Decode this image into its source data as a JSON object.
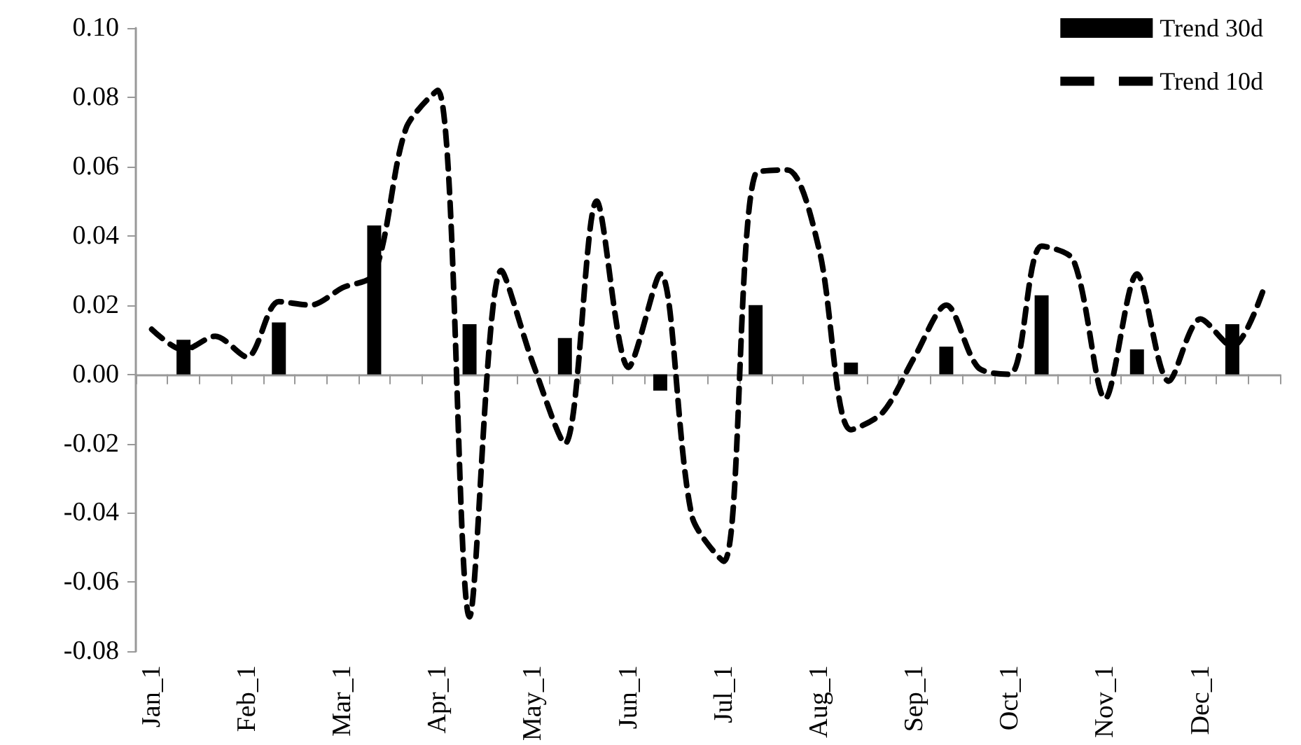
{
  "chart_data": {
    "type": "bar",
    "categories": [
      "Jan_1",
      null,
      null,
      "Feb_1",
      null,
      null,
      "Mar_1",
      null,
      null,
      "Apr_1",
      null,
      null,
      "May_1",
      null,
      null,
      "Jun_1",
      null,
      null,
      "Jul_1",
      null,
      null,
      "Aug_1",
      null,
      null,
      "Sep_1",
      null,
      null,
      "Oct_1",
      null,
      null,
      "Nov_1",
      null,
      null,
      "Dec_1",
      null,
      null
    ],
    "series": [
      {
        "name": "Trend 30d",
        "color": "#000000",
        "values": [
          null,
          0.01,
          null,
          null,
          0.015,
          null,
          null,
          0.043,
          null,
          null,
          0.0145,
          null,
          null,
          0.0105,
          null,
          null,
          -0.0047,
          null,
          null,
          0.02,
          null,
          null,
          0.0034,
          null,
          null,
          0.008,
          null,
          null,
          0.0228,
          null,
          null,
          0.0072,
          null,
          null,
          0.0145,
          null
        ]
      },
      {
        "name": "Trend 10d",
        "type": "line",
        "color": "#000000",
        "line_style": "dashed",
        "marker": "none",
        "values": [
          0.013,
          0.007,
          0.011,
          0.005,
          0.021,
          0.02,
          0.025,
          0.029,
          0.071,
          0.082,
          -0.07,
          0.03,
          0.003,
          -0.02,
          0.05,
          0.002,
          0.029,
          -0.041,
          -0.054,
          0.058,
          0.059,
          0.036,
          -0.016,
          -0.011,
          0.005,
          0.02,
          0.002,
          0.0,
          0.037,
          0.033,
          -0.007,
          0.029,
          -0.002,
          0.016,
          0.008,
          0.025
        ]
      }
    ],
    "ylim": [
      -0.08,
      0.1
    ],
    "yticks": [
      {
        "value": -0.08,
        "label": "-0.08"
      },
      {
        "value": -0.06,
        "label": "-0.06"
      },
      {
        "value": -0.04,
        "label": "-0.04"
      },
      {
        "value": -0.02,
        "label": "-0.02"
      },
      {
        "value": 0,
        "label": "0.00"
      },
      {
        "value": 0.02,
        "label": "0.02"
      },
      {
        "value": 0.04,
        "label": "0.04"
      },
      {
        "value": 0.06,
        "label": "0.06"
      },
      {
        "value": 0.08,
        "label": "0.08"
      },
      {
        "value": 0.1,
        "label": "0.10"
      }
    ],
    "legend": "top right"
  }
}
